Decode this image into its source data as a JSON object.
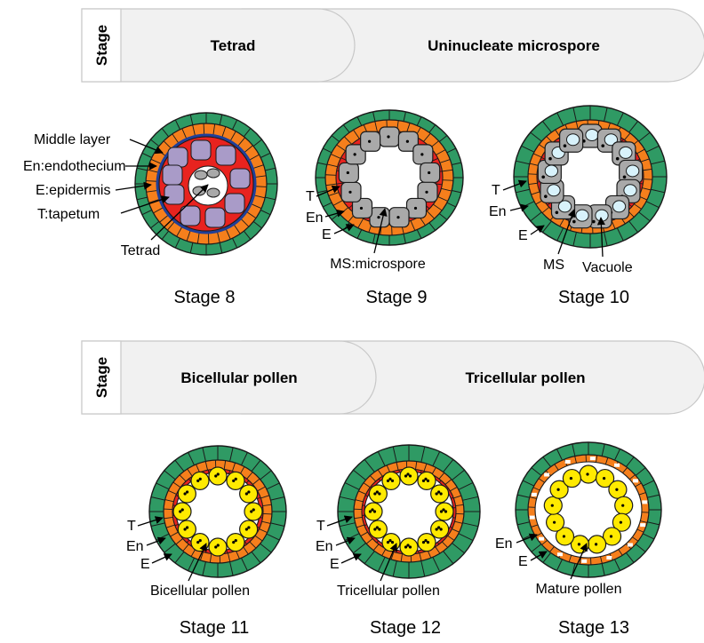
{
  "rows": [
    {
      "side_label": "Stage",
      "phases": [
        "Tetrad",
        "Uninucleate microspore"
      ],
      "stages": [
        {
          "caption": "Stage 8",
          "labels": [
            "Middle layer",
            "En:endothecium",
            "E:epidermis",
            "T:tapetum",
            "Tetrad"
          ]
        },
        {
          "caption": "Stage 9",
          "labels": [
            "T",
            "En",
            "E",
            "MS:microspore"
          ]
        },
        {
          "caption": "Stage 10",
          "labels": [
            "T",
            "En",
            "E",
            "MS",
            "Vacuole"
          ]
        }
      ]
    },
    {
      "side_label": "Stage",
      "phases": [
        "Bicellular pollen",
        "Tricellular pollen"
      ],
      "stages": [
        {
          "caption": "Stage 11",
          "labels": [
            "T",
            "En",
            "E",
            "Bicellular pollen"
          ]
        },
        {
          "caption": "Stage 12",
          "labels": [
            "T",
            "En",
            "E",
            "Tricellular pollen"
          ]
        },
        {
          "caption": "Stage 13",
          "labels": [
            "En",
            "E",
            "Mature pollen"
          ]
        }
      ]
    }
  ],
  "colors": {
    "epidermis": "#2f9a64",
    "endothecium": "#f57f1c",
    "tapetum": "#e8231f",
    "middle_layer": "#1f3f9a",
    "tetrad_cell": "#a99bc8",
    "microspore": "#a9a9a9",
    "vacuole": "#d8f2fb",
    "pollen": "#ffea00",
    "banner": "#f1f1f1"
  }
}
